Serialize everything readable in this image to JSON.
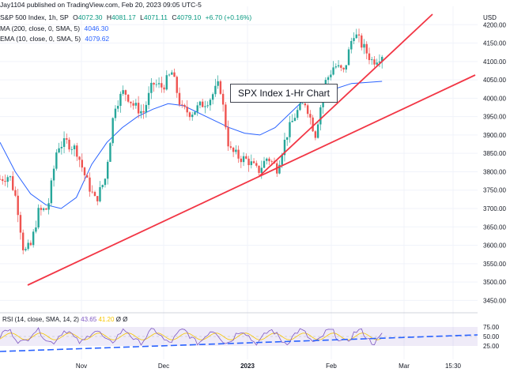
{
  "header": {
    "published": "Jay1104 published on TradingView.com, Feb 20, 2023 09:05 UTC-5",
    "symbol": "S&P 500 Index, 1h, SP",
    "ohlc": {
      "o_label": "O",
      "o": "4072.30",
      "h_label": "H",
      "h": "4081.17",
      "l_label": "L",
      "l": "4071.11",
      "c_label": "C",
      "c": "4079.10",
      "change": "+6.70 (+0.16%)"
    },
    "ma_label": "MA (200, close, 0, SMA, 5)",
    "ma_value": "4046.30",
    "ema_label": "EMA (10, close, 0, SMA, 5)",
    "ema_value": "4079.62"
  },
  "callout": "SPX Index 1-Hr Chart",
  "rsi": {
    "label": "RSI (14, close, SMA, 14, 2)",
    "value1": "43.65",
    "value2": "41.20",
    "tail": "Ø Ø"
  },
  "chart_data": {
    "type": "candlestick",
    "currency": "USD",
    "ylim": [
      3425,
      4250
    ],
    "y_ticks": [
      3450,
      3500,
      3550,
      3600,
      3650,
      3700,
      3750,
      3800,
      3850,
      3900,
      3950,
      4000,
      4050,
      4100,
      4150,
      4200
    ],
    "x_ticks": [
      "Nov",
      "Dec",
      "2023",
      "Jan",
      "Feb",
      "Mar",
      "15:30"
    ],
    "rsi_ticks": [
      75,
      50,
      25
    ],
    "price_path": [
      [
        0,
        3780
      ],
      [
        0.02,
        3790
      ],
      [
        0.035,
        3720
      ],
      [
        0.05,
        3580
      ],
      [
        0.065,
        3600
      ],
      [
        0.08,
        3690
      ],
      [
        0.1,
        3700
      ],
      [
        0.12,
        3870
      ],
      [
        0.14,
        3880
      ],
      [
        0.16,
        3860
      ],
      [
        0.18,
        3780
      ],
      [
        0.2,
        3720
      ],
      [
        0.22,
        3780
      ],
      [
        0.24,
        3980
      ],
      [
        0.26,
        4020
      ],
      [
        0.28,
        3980
      ],
      [
        0.3,
        3960
      ],
      [
        0.32,
        4040
      ],
      [
        0.34,
        4030
      ],
      [
        0.36,
        4070
      ],
      [
        0.38,
        3970
      ],
      [
        0.4,
        3960
      ],
      [
        0.42,
        3980
      ],
      [
        0.44,
        4000
      ],
      [
        0.46,
        4040
      ],
      [
        0.48,
        3860
      ],
      [
        0.5,
        3840
      ],
      [
        0.52,
        3830
      ],
      [
        0.54,
        3800
      ],
      [
        0.56,
        3840
      ],
      [
        0.58,
        3810
      ],
      [
        0.6,
        3900
      ],
      [
        0.62,
        3960
      ],
      [
        0.64,
        3990
      ],
      [
        0.66,
        3900
      ],
      [
        0.68,
        4040
      ],
      [
        0.7,
        4090
      ],
      [
        0.72,
        4070
      ],
      [
        0.74,
        4180
      ],
      [
        0.76,
        4140
      ],
      [
        0.78,
        4100
      ],
      [
        0.8,
        4120
      ],
      [
        0.82,
        4150
      ],
      [
        0.84,
        4100
      ],
      [
        0.86,
        4130
      ],
      [
        0.88,
        4120
      ],
      [
        0.9,
        4080
      ],
      [
        0.92,
        4110
      ],
      [
        0.94,
        4060
      ],
      [
        1.0,
        4079
      ]
    ],
    "ma200_path": [
      [
        0,
        3880
      ],
      [
        0.04,
        3800
      ],
      [
        0.08,
        3740
      ],
      [
        0.12,
        3710
      ],
      [
        0.16,
        3700
      ],
      [
        0.2,
        3730
      ],
      [
        0.24,
        3820
      ],
      [
        0.28,
        3880
      ],
      [
        0.32,
        3920
      ],
      [
        0.36,
        3950
      ],
      [
        0.4,
        3970
      ],
      [
        0.44,
        3985
      ],
      [
        0.48,
        3980
      ],
      [
        0.52,
        3960
      ],
      [
        0.56,
        3940
      ],
      [
        0.6,
        3920
      ],
      [
        0.64,
        3905
      ],
      [
        0.68,
        3900
      ],
      [
        0.72,
        3920
      ],
      [
        0.76,
        3960
      ],
      [
        0.8,
        4000
      ],
      [
        0.86,
        4020
      ],
      [
        0.92,
        4040
      ],
      [
        1.0,
        4046
      ]
    ],
    "trendlines": [
      {
        "from": [
          0.0,
          3505
        ],
        "to": [
          1.0,
          3990
        ]
      },
      {
        "from": [
          0.0,
          3820
        ],
        "to": [
          1.0,
          4300
        ]
      }
    ]
  }
}
